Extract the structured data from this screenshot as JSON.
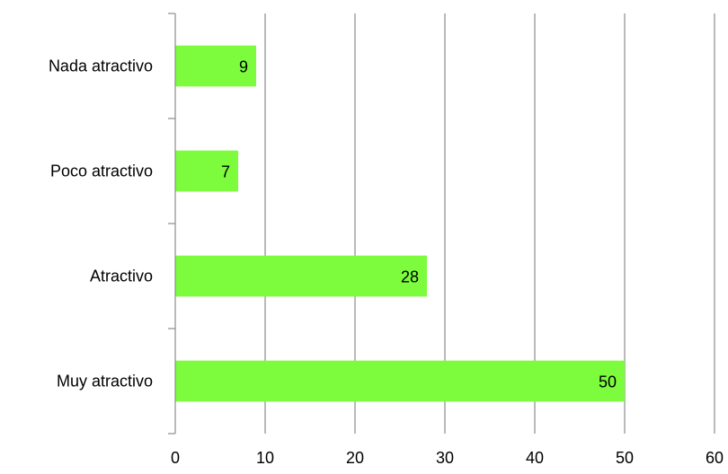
{
  "chart_data": {
    "type": "bar",
    "orientation": "horizontal",
    "title": "",
    "xlabel": "",
    "ylabel": "",
    "categories": [
      "Nada atractivo",
      "Poco atractivo",
      "Atractivo",
      "Muy atractivo"
    ],
    "values": [
      9,
      7,
      28,
      50
    ],
    "data_labels": [
      "9",
      "7",
      "28",
      "50"
    ],
    "xlim": [
      0,
      60
    ],
    "x_ticks": [
      0,
      10,
      20,
      30,
      40,
      50,
      60
    ],
    "x_tick_labels": [
      "0",
      "10",
      "20",
      "30",
      "40",
      "50",
      "60"
    ],
    "grid": "vertical",
    "legend": "none",
    "colors": {
      "bar": "#7cfc3c",
      "grid": "#8c8c8c",
      "axis": "#8c8c8c"
    }
  }
}
